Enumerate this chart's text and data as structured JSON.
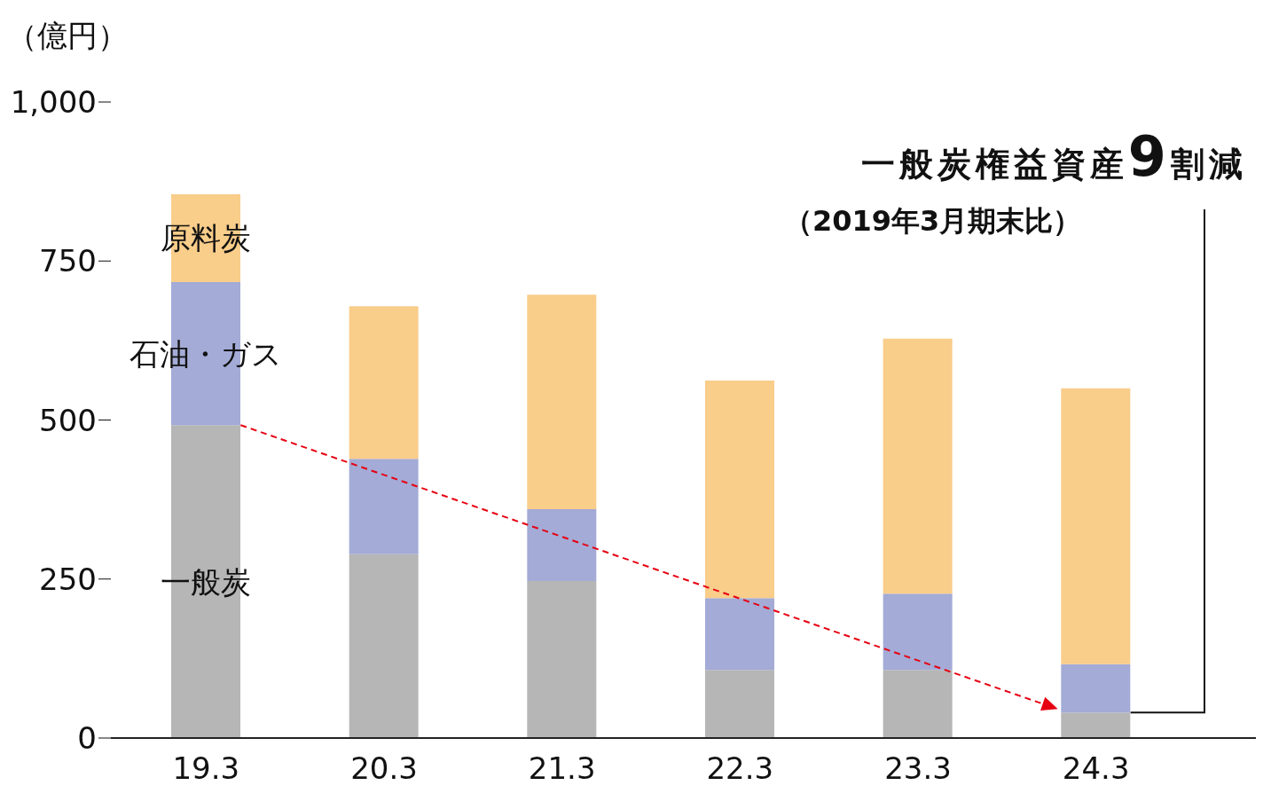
{
  "chart_data": {
    "type": "bar",
    "stacked": true,
    "ylabel": "（億円）",
    "categories": [
      "19.3",
      "20.3",
      "21.3",
      "22.3",
      "23.3",
      "24.3"
    ],
    "series": [
      {
        "name": "一般炭",
        "color": "#b5b6b5",
        "values": [
          492,
          289,
          247,
          107,
          107,
          40
        ]
      },
      {
        "name": "石油・ガス",
        "color": "#a3abd6",
        "values": [
          225,
          150,
          113,
          113,
          120,
          76
        ]
      },
      {
        "name": "原料炭",
        "color": "#f9cd8a",
        "values": [
          138,
          240,
          337,
          342,
          401,
          434
        ]
      }
    ],
    "ylim": [
      0,
      1000
    ],
    "yticks": [
      0,
      250,
      500,
      750,
      {
        "value": 1000,
        "label": "1,000"
      }
    ],
    "grid": false,
    "legend": false,
    "annotations": [
      "一般炭権益資産9割減",
      "（2019年3月期末比）"
    ]
  }
}
